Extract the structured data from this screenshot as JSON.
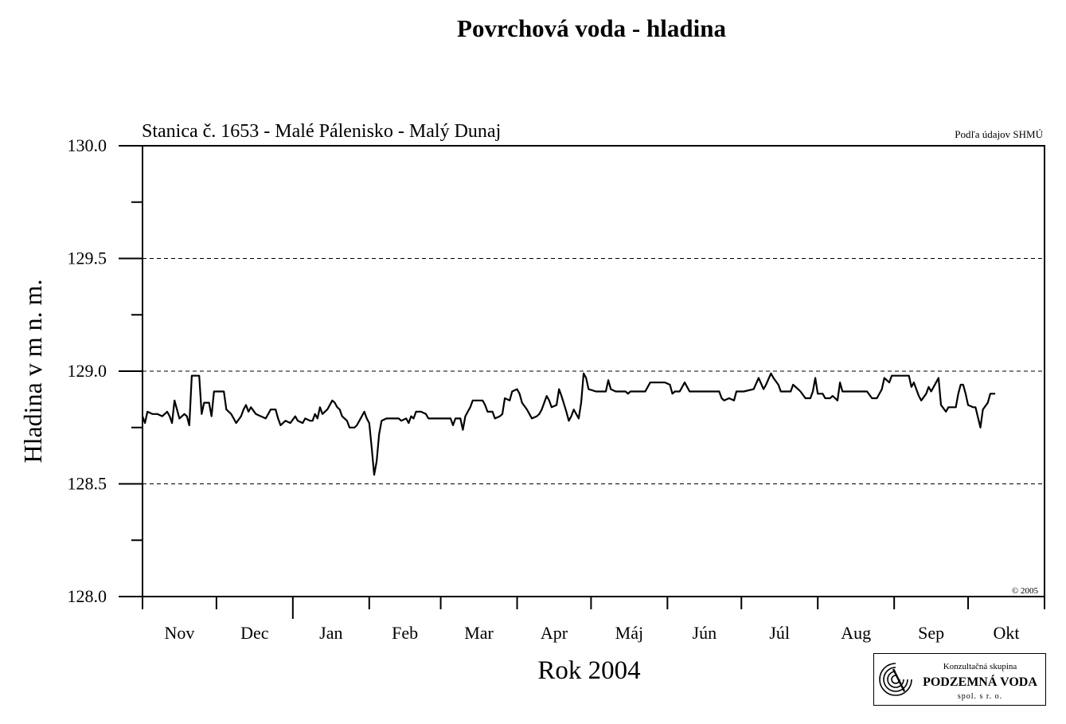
{
  "title": "Povrchová voda - hladina",
  "chart_data": {
    "type": "line",
    "subtitle": "Stanica č. 1653 - Malé Pálenisko - Malý Dunaj",
    "source_note": "Podľa údajov SHMÚ",
    "copyright": "© 2005",
    "xlabel": "Rok 2004",
    "ylabel": "Hladina v m n. m.",
    "ylim": [
      128.0,
      130.0
    ],
    "y_ticks": [
      "130.0",
      "129.5",
      "129.0",
      "128.5",
      "128.0"
    ],
    "grid": "horizontal dashed at 128.5, 129.0, 129.5",
    "month_labels": [
      "Nov",
      "Dec",
      "Jan",
      "Feb",
      "Mar",
      "Apr",
      "Máj",
      "Jún",
      "Júl",
      "Aug",
      "Sep",
      "Okt"
    ],
    "x_unit": "days from 1 Nov 2003",
    "xlim": [
      0,
      366
    ],
    "series": [
      {
        "points": [
          [
            0,
            128.8
          ],
          [
            1,
            128.77
          ],
          [
            2,
            128.82
          ],
          [
            4,
            128.81
          ],
          [
            6,
            128.81
          ],
          [
            8,
            128.8
          ],
          [
            10,
            128.82
          ],
          [
            11,
            128.8
          ],
          [
            12,
            128.77
          ],
          [
            13,
            128.87
          ],
          [
            15,
            128.79
          ],
          [
            17,
            128.81
          ],
          [
            18,
            128.8
          ],
          [
            19,
            128.76
          ],
          [
            20,
            128.98
          ],
          [
            22,
            128.98
          ],
          [
            23,
            128.98
          ],
          [
            24,
            128.81
          ],
          [
            25,
            128.86
          ],
          [
            27,
            128.86
          ],
          [
            28,
            128.8
          ],
          [
            29,
            128.91
          ],
          [
            31,
            128.91
          ],
          [
            33,
            128.91
          ],
          [
            34,
            128.83
          ],
          [
            36,
            128.81
          ],
          [
            37,
            128.79
          ],
          [
            38,
            128.77
          ],
          [
            40,
            128.8
          ],
          [
            41,
            128.83
          ],
          [
            42,
            128.85
          ],
          [
            43,
            128.82
          ],
          [
            44,
            128.84
          ],
          [
            46,
            128.81
          ],
          [
            48,
            128.8
          ],
          [
            50,
            128.79
          ],
          [
            51,
            128.81
          ],
          [
            52,
            128.83
          ],
          [
            54,
            128.83
          ],
          [
            55,
            128.79
          ],
          [
            56,
            128.76
          ],
          [
            58,
            128.78
          ],
          [
            60,
            128.77
          ],
          [
            62,
            128.8
          ],
          [
            63,
            128.78
          ],
          [
            65,
            128.77
          ],
          [
            66,
            128.79
          ],
          [
            68,
            128.78
          ],
          [
            69,
            128.78
          ],
          [
            70,
            128.81
          ],
          [
            71,
            128.79
          ],
          [
            72,
            128.84
          ],
          [
            73,
            128.81
          ],
          [
            74,
            128.82
          ],
          [
            75,
            128.83
          ],
          [
            77,
            128.87
          ],
          [
            78,
            128.86
          ],
          [
            79,
            128.84
          ],
          [
            80,
            128.83
          ],
          [
            81,
            128.8
          ],
          [
            83,
            128.78
          ],
          [
            84,
            128.75
          ],
          [
            86,
            128.75
          ],
          [
            87,
            128.76
          ],
          [
            88,
            128.78
          ],
          [
            90,
            128.82
          ],
          [
            91,
            128.79
          ],
          [
            92,
            128.77
          ],
          [
            93,
            128.66
          ],
          [
            94,
            128.54
          ],
          [
            95,
            128.6
          ],
          [
            96,
            128.72
          ],
          [
            97,
            128.78
          ],
          [
            99,
            128.79
          ],
          [
            101,
            128.79
          ],
          [
            103,
            128.79
          ],
          [
            104,
            128.79
          ],
          [
            105,
            128.78
          ],
          [
            107,
            128.79
          ],
          [
            108,
            128.77
          ],
          [
            109,
            128.8
          ],
          [
            110,
            128.79
          ],
          [
            111,
            128.82
          ],
          [
            113,
            128.82
          ],
          [
            115,
            128.81
          ],
          [
            116,
            128.79
          ],
          [
            118,
            128.79
          ],
          [
            122,
            128.79
          ],
          [
            125,
            128.79
          ],
          [
            126,
            128.76
          ],
          [
            127,
            128.79
          ],
          [
            129,
            128.79
          ],
          [
            130,
            128.74
          ],
          [
            131,
            128.8
          ],
          [
            132,
            128.82
          ],
          [
            133,
            128.84
          ],
          [
            134,
            128.87
          ],
          [
            136,
            128.87
          ],
          [
            138,
            128.87
          ],
          [
            139,
            128.85
          ],
          [
            140,
            128.82
          ],
          [
            142,
            128.82
          ],
          [
            143,
            128.79
          ],
          [
            145,
            128.8
          ],
          [
            146,
            128.81
          ],
          [
            147,
            128.88
          ],
          [
            149,
            128.87
          ],
          [
            150,
            128.91
          ],
          [
            152,
            128.92
          ],
          [
            153,
            128.9
          ],
          [
            154,
            128.86
          ],
          [
            156,
            128.83
          ],
          [
            157,
            128.81
          ],
          [
            158,
            128.79
          ],
          [
            160,
            128.8
          ],
          [
            161,
            128.81
          ],
          [
            162,
            128.83
          ],
          [
            164,
            128.89
          ],
          [
            165,
            128.87
          ],
          [
            166,
            128.84
          ],
          [
            168,
            128.85
          ],
          [
            169,
            128.92
          ],
          [
            170,
            128.89
          ],
          [
            172,
            128.82
          ],
          [
            173,
            128.78
          ],
          [
            174,
            128.8
          ],
          [
            175,
            128.83
          ],
          [
            176,
            128.81
          ],
          [
            177,
            128.79
          ],
          [
            178,
            128.86
          ],
          [
            179,
            128.99
          ],
          [
            180,
            128.97
          ],
          [
            181,
            128.92
          ],
          [
            184,
            128.91
          ],
          [
            186,
            128.91
          ],
          [
            188,
            128.91
          ],
          [
            189,
            128.96
          ],
          [
            190,
            128.92
          ],
          [
            192,
            128.91
          ],
          [
            196,
            128.91
          ],
          [
            197,
            128.9
          ],
          [
            198,
            128.91
          ],
          [
            200,
            128.91
          ],
          [
            202,
            128.91
          ],
          [
            204,
            128.91
          ],
          [
            206,
            128.95
          ],
          [
            208,
            128.95
          ],
          [
            210,
            128.95
          ],
          [
            212,
            128.95
          ],
          [
            214,
            128.94
          ],
          [
            215,
            128.9
          ],
          [
            216,
            128.91
          ],
          [
            218,
            128.91
          ],
          [
            220,
            128.95
          ],
          [
            221,
            128.93
          ],
          [
            222,
            128.91
          ],
          [
            226,
            128.91
          ],
          [
            230,
            128.91
          ],
          [
            234,
            128.91
          ],
          [
            235,
            128.88
          ],
          [
            236,
            128.87
          ],
          [
            238,
            128.88
          ],
          [
            240,
            128.87
          ],
          [
            241,
            128.91
          ],
          [
            244,
            128.91
          ],
          [
            248,
            128.92
          ],
          [
            250,
            128.97
          ],
          [
            252,
            128.92
          ],
          [
            253,
            128.94
          ],
          [
            255,
            128.99
          ],
          [
            256,
            128.97
          ],
          [
            258,
            128.94
          ],
          [
            259,
            128.91
          ],
          [
            261,
            128.91
          ],
          [
            262,
            128.91
          ],
          [
            263,
            128.91
          ],
          [
            264,
            128.94
          ],
          [
            266,
            128.92
          ],
          [
            267,
            128.91
          ],
          [
            269,
            128.88
          ],
          [
            271,
            128.88
          ],
          [
            272,
            128.91
          ],
          [
            273,
            128.97
          ],
          [
            274,
            128.9
          ],
          [
            276,
            128.9
          ],
          [
            277,
            128.88
          ],
          [
            279,
            128.88
          ],
          [
            280,
            128.89
          ],
          [
            282,
            128.87
          ],
          [
            283,
            128.95
          ],
          [
            284,
            128.91
          ],
          [
            288,
            128.91
          ],
          [
            292,
            128.91
          ],
          [
            294,
            128.91
          ],
          [
            296,
            128.88
          ],
          [
            298,
            128.88
          ],
          [
            300,
            128.92
          ],
          [
            301,
            128.97
          ],
          [
            303,
            128.95
          ],
          [
            304,
            128.98
          ],
          [
            306,
            128.98
          ],
          [
            308,
            128.98
          ],
          [
            310,
            128.98
          ],
          [
            311,
            128.98
          ],
          [
            312,
            128.93
          ],
          [
            313,
            128.95
          ],
          [
            315,
            128.89
          ],
          [
            316,
            128.87
          ],
          [
            318,
            128.9
          ],
          [
            319,
            128.93
          ],
          [
            320,
            128.91
          ],
          [
            322,
            128.95
          ],
          [
            323,
            128.97
          ],
          [
            324,
            128.85
          ],
          [
            326,
            128.82
          ],
          [
            327,
            128.84
          ],
          [
            330,
            128.84
          ],
          [
            331,
            128.9
          ],
          [
            332,
            128.94
          ],
          [
            333,
            128.94
          ],
          [
            334,
            128.9
          ],
          [
            335,
            128.85
          ],
          [
            337,
            128.84
          ],
          [
            338,
            128.84
          ],
          [
            340,
            128.75
          ],
          [
            341,
            128.83
          ],
          [
            343,
            128.86
          ],
          [
            344,
            128.9
          ],
          [
            345,
            128.9
          ],
          [
            346,
            128.9
          ]
        ]
      }
    ]
  },
  "logo": {
    "line1": "Konzultačná skupina",
    "line2": "PODZEMNÁ VODA",
    "line3": "spol. s r. o."
  }
}
